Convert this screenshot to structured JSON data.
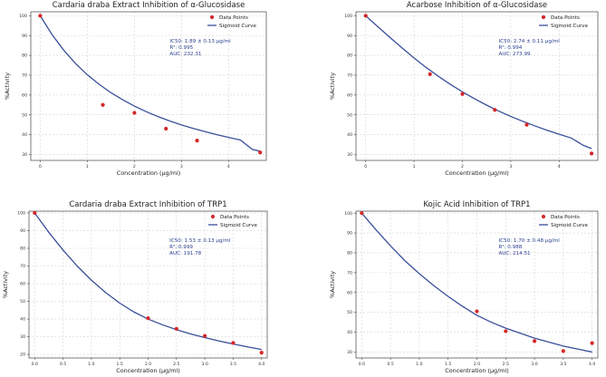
{
  "figure_kind": "2x2 sigmoid inhibition plots",
  "chart_data": [
    {
      "type": "scatter",
      "title": "Cardaria draba Extract Inhibition of α-Glucosidase",
      "xlabel": "Concentration (μg/ml)",
      "ylabel": "%Activity",
      "xlim": [
        -0.2,
        4.8
      ],
      "ylim": [
        27,
        102
      ],
      "xticks": [
        0,
        1,
        2,
        3,
        4
      ],
      "yticks": [
        30,
        40,
        50,
        60,
        70,
        80,
        90,
        100
      ],
      "legend_position": "top-right",
      "legend": [
        "Data Points",
        "Sigmoid Curve"
      ],
      "points": {
        "x": [
          0,
          1.33,
          2.0,
          2.67,
          3.33,
          4.67
        ],
        "y": [
          100,
          55,
          51,
          43,
          37,
          31
        ]
      },
      "curve": {
        "x": [
          0,
          0.25,
          0.5,
          0.75,
          1.0,
          1.25,
          1.5,
          1.75,
          2.0,
          2.25,
          2.5,
          2.75,
          3.0,
          3.25,
          3.5,
          3.75,
          4.0,
          4.25,
          4.5,
          4.67
        ],
        "y": [
          100,
          90.5,
          82.6,
          75.9,
          70.2,
          65.4,
          61.2,
          57.6,
          54.4,
          51.6,
          49.1,
          46.9,
          44.9,
          43.1,
          41.5,
          40.0,
          38.6,
          37.3,
          32.6,
          31.6
        ]
      },
      "annotation": [
        "IC50: 1.89 ± 0.13 μg/ml",
        "R²: 0.995",
        "AUC: 232.31"
      ]
    },
    {
      "type": "scatter",
      "title": "Acarbose Inhibition of α-Glucosidase",
      "xlabel": "Concentration (μg/ml)",
      "ylabel": "%Activity",
      "xlim": [
        -0.2,
        4.8
      ],
      "ylim": [
        27,
        102
      ],
      "xticks": [
        0,
        1,
        2,
        3,
        4
      ],
      "yticks": [
        30,
        40,
        50,
        60,
        70,
        80,
        90,
        100
      ],
      "legend_position": "top-right",
      "legend": [
        "Data Points",
        "Sigmoid Curve"
      ],
      "points": {
        "x": [
          0,
          1.33,
          2.0,
          2.67,
          3.33,
          4.67
        ],
        "y": [
          100,
          70.5,
          60.5,
          52.5,
          45,
          30.5
        ]
      },
      "curve": {
        "x": [
          0,
          0.25,
          0.5,
          0.75,
          1.0,
          1.25,
          1.5,
          1.75,
          2.0,
          2.25,
          2.5,
          2.75,
          3.0,
          3.25,
          3.5,
          3.75,
          4.0,
          4.25,
          4.5,
          4.67
        ],
        "y": [
          100,
          94.5,
          89.1,
          83.8,
          78.7,
          73.9,
          69.5,
          65.4,
          61.6,
          58.1,
          54.9,
          51.9,
          49.2,
          46.7,
          44.4,
          42.2,
          40.2,
          38.3,
          34.6,
          33.0
        ]
      },
      "annotation": [
        "IC50: 2.74 ± 0.11 μg/ml",
        "R²: 0.994",
        "AUC: 273.99"
      ]
    },
    {
      "type": "scatter",
      "title": "Cardaria draba Extract Inhibition of TRP1",
      "xlabel": "Concentration (μg/ml)",
      "ylabel": "%Activity",
      "xlim": [
        -0.1,
        4.1
      ],
      "ylim": [
        18,
        101
      ],
      "xticks": [
        0.0,
        0.5,
        1.0,
        1.5,
        2.0,
        2.5,
        3.0,
        3.5,
        4.0
      ],
      "xtick_labels": [
        "0.0",
        "0.5",
        "1.0",
        "1.5",
        "2.0",
        "2.5",
        "3.0",
        "3.5",
        "4.0"
      ],
      "yticks": [
        20,
        30,
        40,
        50,
        60,
        70,
        80,
        90,
        100
      ],
      "legend_position": "top-right",
      "legend": [
        "Data Points",
        "Sigmoid Curve"
      ],
      "points": {
        "x": [
          0,
          2.0,
          2.5,
          3.0,
          3.5,
          4.0
        ],
        "y": [
          100,
          40.5,
          34.5,
          30.5,
          26.5,
          21
        ]
      },
      "curve": {
        "x": [
          0,
          0.25,
          0.5,
          0.75,
          1.0,
          1.25,
          1.5,
          1.75,
          2.0,
          2.25,
          2.5,
          2.75,
          3.0,
          3.25,
          3.5,
          3.75,
          4.0
        ],
        "y": [
          100,
          89.0,
          79.0,
          70.0,
          62.0,
          55.0,
          49.0,
          44.0,
          40.0,
          36.8,
          34.0,
          31.6,
          29.5,
          27.6,
          25.9,
          24.3,
          22.8
        ]
      },
      "annotation": [
        "IC50: 1.53 ± 0.13 μg/ml",
        "R²: 0.999",
        "AUC: 191.78"
      ]
    },
    {
      "type": "scatter",
      "title": "Kojic Acid Inhibition of TRP1",
      "xlabel": "Concentration (μg/ml)",
      "ylabel": "%Activity",
      "xlim": [
        -0.1,
        4.1
      ],
      "ylim": [
        27,
        101
      ],
      "xticks": [
        0.0,
        0.5,
        1.0,
        1.5,
        2.0,
        2.5,
        3.0,
        3.5,
        4.0
      ],
      "xtick_labels": [
        "0.0",
        "0.5",
        "1.0",
        "1.5",
        "2.0",
        "2.5",
        "3.0",
        "3.5",
        "4.0"
      ],
      "yticks": [
        30,
        40,
        50,
        60,
        70,
        80,
        90,
        100
      ],
      "legend_position": "top-right",
      "legend": [
        "Data Points",
        "Sigmoid Curve"
      ],
      "points": {
        "x": [
          0,
          2.0,
          2.5,
          3.0,
          3.5,
          4.0
        ],
        "y": [
          100,
          50.5,
          40.5,
          35.5,
          30.5,
          34.5
        ]
      },
      "curve": {
        "x": [
          0,
          0.25,
          0.5,
          0.75,
          1.0,
          1.25,
          1.5,
          1.75,
          2.0,
          2.25,
          2.5,
          2.75,
          3.0,
          3.25,
          3.5,
          3.75,
          4.0
        ],
        "y": [
          100,
          91.5,
          83.5,
          76.0,
          69.5,
          63.5,
          58.0,
          53.0,
          48.5,
          45.0,
          42.0,
          39.5,
          37.0,
          35.0,
          33.0,
          31.5,
          30.0
        ]
      },
      "annotation": [
        "IC50: 1.70 ± 0.48 μg/ml",
        "R²: 0.988",
        "AUC: 214.51"
      ]
    }
  ]
}
